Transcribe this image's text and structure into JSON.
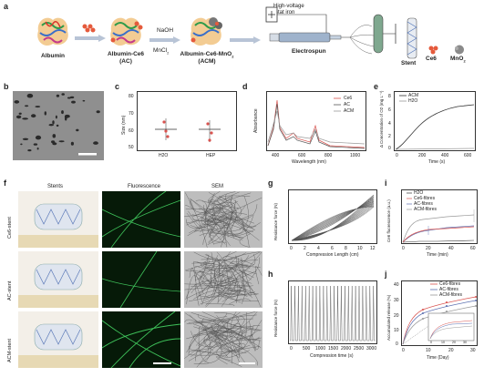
{
  "panel_labels": {
    "a": "a",
    "b": "b",
    "c": "c",
    "d": "d",
    "e": "e",
    "f": "f",
    "g": "g",
    "h": "h",
    "i": "i",
    "j": "j"
  },
  "scheme": {
    "albumin": "Albumin",
    "albumin_ce6": "Albumin-Ce6",
    "albumin_ce6_sub": "(AC)",
    "albumin_ce6_mno2": "Albumin-Ce6-MnO",
    "albumin_ce6_mno2_sub": "(ACM)",
    "naoh": "NaOH",
    "mncl2": "MnCl",
    "high_voltage": "High-voltage",
    "stat_iron": "stat iron",
    "electrospun": "Electrospun",
    "stent": "Stent",
    "ce6": "Ce6",
    "mno2": "MnO",
    "sub2": "2"
  },
  "panel_c": {
    "ylabel": "Size (nm)",
    "yticks": [
      "80",
      "70",
      "60",
      "50"
    ],
    "xticks": [
      "H2O",
      "HEP"
    ]
  },
  "panel_d": {
    "ylabel": "Absorbance",
    "xlabel": "Wavelength (nm)",
    "xticks": [
      "400",
      "600",
      "800",
      "1000"
    ],
    "legend": [
      "Ce6",
      "AC",
      "ACM"
    ],
    "colors": {
      "Ce6": "#d9534f",
      "AC": "#555555",
      "ACM": "#999999"
    }
  },
  "panel_e": {
    "ylabel": "Δ Concentration of O2 (mg L⁻¹)",
    "xlabel": "Time (s)",
    "xticks": [
      "0",
      "200",
      "400",
      "600"
    ],
    "yticks": [
      "8",
      "6",
      "4",
      "2",
      "0"
    ],
    "legend": [
      "ACM",
      "H2O"
    ]
  },
  "panel_f": {
    "col_headers": [
      "Stents",
      "Fluorescence",
      "SEM"
    ],
    "rows": [
      "Ce6-stent",
      "AC-stent",
      "ACM-stent"
    ]
  },
  "panel_g": {
    "ylabel": "Resistance force (N)",
    "xlabel": "Compression Length (cm)",
    "xticks": [
      "0",
      "2",
      "4",
      "6",
      "8",
      "10",
      "12"
    ]
  },
  "panel_h": {
    "ylabel": "Resistance force (N)",
    "xlabel": "Compression time (s)",
    "xticks": [
      "0",
      "500",
      "1000",
      "1500",
      "2000",
      "2500",
      "3000"
    ]
  },
  "panel_i": {
    "ylabel": "Ce6 fluorescence (a.u.)",
    "xlabel": "Time (min)",
    "xticks": [
      "0",
      "20",
      "40",
      "60"
    ],
    "legend": [
      "H2O",
      "Ce6-fibres",
      "AC-fibres",
      "ACM-fibres"
    ]
  },
  "panel_j": {
    "ylabel": "Accumulated release (%)",
    "xlabel": "Time (Day)",
    "xticks": [
      "0",
      "10",
      "20",
      "30"
    ],
    "yticks": [
      "40",
      "30",
      "20",
      "10",
      "0"
    ],
    "legend": [
      "Ce6-fibres",
      "AC-fibres",
      "ACM-fibres"
    ],
    "inset_xticks": [
      "0",
      "10",
      "20",
      "30"
    ],
    "colors": {
      "Ce6-fibres": "#d9534f",
      "AC-fibres": "#5b6fb0",
      "ACM-fibres": "#999999"
    }
  }
}
